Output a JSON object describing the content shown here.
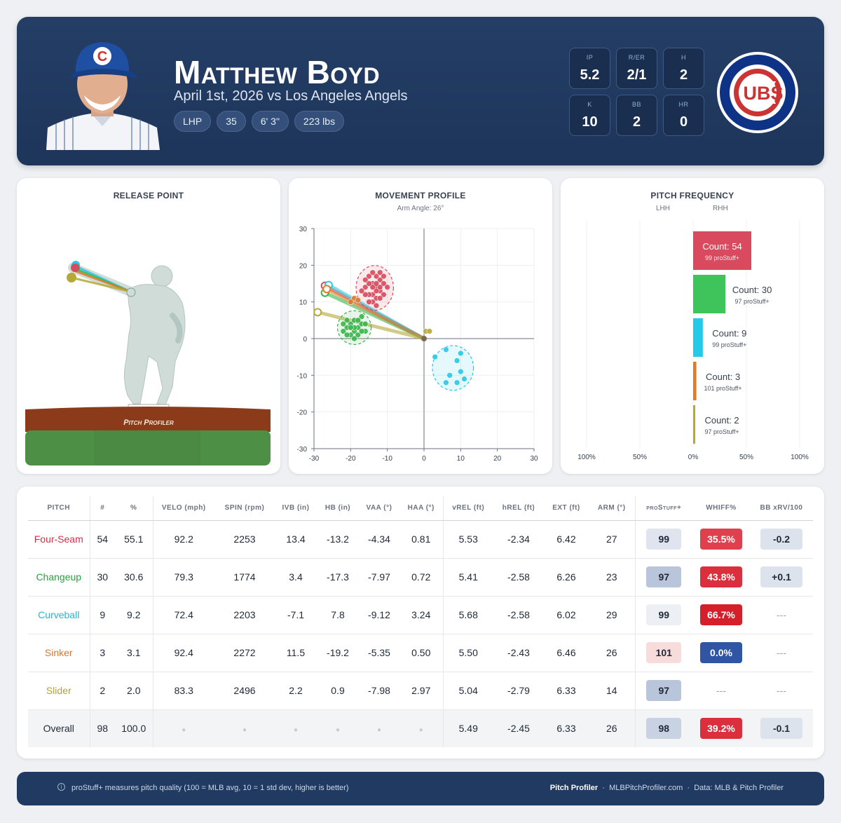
{
  "header": {
    "name": "Matthew Boyd",
    "subtitle": "April 1st, 2026 vs Los Angeles Angels",
    "chips": [
      "LHP",
      "35",
      "6' 3\"",
      "223 lbs"
    ],
    "stats": [
      {
        "label": "IP",
        "value": "5.2"
      },
      {
        "label": "R/ER",
        "value": "2/1"
      },
      {
        "label": "H",
        "value": "2"
      },
      {
        "label": "K",
        "value": "10"
      },
      {
        "label": "BB",
        "value": "2"
      },
      {
        "label": "HR",
        "value": "0"
      }
    ],
    "logo_text": "UBS",
    "logo_tm": "TM",
    "cap_letter": "C"
  },
  "release_point": {
    "title": "RELEASE POINT",
    "mound_text": "Pitch Profiler"
  },
  "movement": {
    "title": "MOVEMENT PROFILE",
    "subtitle": "Arm Angle: 26°"
  },
  "frequency": {
    "title": "PITCH FREQUENCY",
    "lhh_label": "LHH",
    "rhh_label": "RHH",
    "axis_labels": [
      "100%",
      "50%",
      "0%",
      "50%",
      "100%"
    ]
  },
  "chart_data": [
    {
      "type": "scatter",
      "title": "MOVEMENT PROFILE",
      "subtitle": "Arm Angle: 26°",
      "xlim": [
        -30,
        30
      ],
      "ylim": [
        -30,
        30
      ],
      "xticks": [
        -30,
        -20,
        -10,
        0,
        10,
        20,
        30
      ],
      "yticks": [
        -30,
        -20,
        -10,
        0,
        10,
        20,
        30
      ],
      "grid": true,
      "series": [
        {
          "name": "Four-Seam",
          "color": "#d94a5e",
          "arm": [
            -27,
            14.4
          ],
          "points": [
            [
              -15,
              17
            ],
            [
              -14,
              15
            ],
            [
              -13,
              14
            ],
            [
              -16,
              14
            ],
            [
              -12,
              16
            ],
            [
              -14,
              12
            ],
            [
              -13,
              11
            ],
            [
              -15,
              12
            ],
            [
              -12,
              13
            ],
            [
              -11,
              15
            ],
            [
              -13,
              17
            ],
            [
              -14,
              18
            ],
            [
              -12,
              18
            ],
            [
              -16,
              12
            ],
            [
              -17,
              13
            ],
            [
              -11,
              12
            ],
            [
              -13,
              13
            ],
            [
              -14,
              14
            ],
            [
              -15,
              15
            ],
            [
              -12,
              11
            ],
            [
              -14,
              10
            ],
            [
              -13,
              9
            ],
            [
              -10,
              14
            ],
            [
              -16,
              16
            ],
            [
              -12,
              14
            ],
            [
              -15,
              10
            ],
            [
              -13,
              15
            ],
            [
              -11,
              17
            ]
          ]
        },
        {
          "name": "Changeup",
          "color": "#3ab54a",
          "arm": [
            -27,
            12.5
          ],
          "points": [
            [
              -20,
              4
            ],
            [
              -21,
              3
            ],
            [
              -19,
              5
            ],
            [
              -18,
              3
            ],
            [
              -17,
              4
            ],
            [
              -19,
              2
            ],
            [
              -20,
              1
            ],
            [
              -18,
              1
            ],
            [
              -16,
              2
            ],
            [
              -21,
              5
            ],
            [
              -22,
              4
            ],
            [
              -17,
              6
            ],
            [
              -19,
              3
            ],
            [
              -18,
              5
            ],
            [
              -20,
              3
            ],
            [
              -16,
              4
            ],
            [
              -22,
              2
            ],
            [
              -19,
              0
            ],
            [
              -17,
              2
            ],
            [
              -21,
              1
            ]
          ]
        },
        {
          "name": "Curveball",
          "color": "#28c9e8",
          "arm": [
            -26,
            14.6
          ],
          "points": [
            [
              3,
              -5
            ],
            [
              6,
              -3
            ],
            [
              10,
              -4
            ],
            [
              9,
              -6
            ],
            [
              10,
              -9
            ],
            [
              7,
              -10
            ],
            [
              9,
              -12
            ],
            [
              11,
              -11
            ],
            [
              6,
              -12
            ]
          ]
        },
        {
          "name": "Sinker",
          "color": "#e07b2a",
          "arm": [
            -26.5,
            13.5
          ],
          "points": [
            [
              -19,
              11
            ],
            [
              -20,
              10
            ],
            [
              -18,
              10.5
            ]
          ]
        },
        {
          "name": "Slider",
          "color": "#b5aa38",
          "arm": [
            -29,
            7.2
          ],
          "points": [
            [
              0.5,
              2
            ],
            [
              1.5,
              2
            ]
          ]
        }
      ]
    },
    {
      "type": "bar",
      "title": "PITCH FREQUENCY",
      "categories": [
        "Four-Seam",
        "Changeup",
        "Curveball",
        "Sinker",
        "Slider"
      ],
      "series": [
        {
          "name": "LHH",
          "values": [
            0,
            0,
            0,
            0,
            0
          ]
        },
        {
          "name": "RHH",
          "values": [
            54,
            30,
            9,
            3,
            2
          ]
        }
      ],
      "counts": [
        54,
        30,
        9,
        3,
        2
      ],
      "prostuff": [
        99,
        97,
        99,
        101,
        97
      ],
      "count_labels": [
        "Count: 54",
        "Count: 30",
        "Count: 9",
        "Count: 3",
        "Count: 2"
      ],
      "stuff_labels": [
        "99 proStuff+",
        "97 proStuff+",
        "99 proStuff+",
        "101 proStuff+",
        "97 proStuff+"
      ],
      "colors": [
        "#d94a5e",
        "#3ec45a",
        "#28c9e8",
        "#e07b2a",
        "#b5aa38"
      ],
      "xlim": [
        -100,
        100
      ]
    }
  ],
  "table": {
    "headers": [
      "PITCH",
      "#",
      "%",
      "VELO (mph)",
      "SPIN (rpm)",
      "IVB (in)",
      "HB (in)",
      "VAA (°)",
      "HAA (°)",
      "vREL (ft)",
      "hREL (ft)",
      "EXT (ft)",
      "ARM (°)",
      "proStuff+",
      "WHIFF%",
      "BB xRV/100"
    ],
    "rows": [
      {
        "pitch": "Four-Seam",
        "color": "#d62e47",
        "n": "54",
        "pct": "55.1",
        "velo": "92.2",
        "spin": "2253",
        "ivb": "13.4",
        "hb": "-13.2",
        "vaa": "-4.34",
        "haa": "0.81",
        "vrel": "5.53",
        "hrel": "-2.34",
        "ext": "6.42",
        "arm": "27",
        "stuff": "99",
        "stuff_bg": "#dfe4ee",
        "whiff": "35.5%",
        "whiff_bg": "#e0404e",
        "xrv": "-0.2",
        "xrv_bg": "#dde3ec"
      },
      {
        "pitch": "Changeup",
        "color": "#27a33a",
        "n": "30",
        "pct": "30.6",
        "velo": "79.3",
        "spin": "1774",
        "ivb": "3.4",
        "hb": "-17.3",
        "vaa": "-7.97",
        "haa": "0.72",
        "vrel": "5.41",
        "hrel": "-2.58",
        "ext": "6.26",
        "arm": "23",
        "stuff": "97",
        "stuff_bg": "#b9c5db",
        "whiff": "43.8%",
        "whiff_bg": "#db2f3d",
        "xrv": "+0.1",
        "xrv_bg": "#dde3ec"
      },
      {
        "pitch": "Curveball",
        "color": "#1fb8d8",
        "n": "9",
        "pct": "9.2",
        "velo": "72.4",
        "spin": "2203",
        "ivb": "-7.1",
        "hb": "7.8",
        "vaa": "-9.12",
        "haa": "3.24",
        "vrel": "5.68",
        "hrel": "-2.58",
        "ext": "6.02",
        "arm": "29",
        "stuff": "99",
        "stuff_bg": "#eceff4",
        "whiff": "66.7%",
        "whiff_bg": "#d5202c",
        "xrv": "---",
        "xrv_bg": ""
      },
      {
        "pitch": "Sinker",
        "color": "#d9782c",
        "n": "3",
        "pct": "3.1",
        "velo": "92.4",
        "spin": "2272",
        "ivb": "11.5",
        "hb": "-19.2",
        "vaa": "-5.35",
        "haa": "0.50",
        "vrel": "5.50",
        "hrel": "-2.43",
        "ext": "6.46",
        "arm": "26",
        "stuff": "101",
        "stuff_bg": "#f8dcdc",
        "whiff": "0.0%",
        "whiff_bg": "#2f55a4",
        "xrv": "---",
        "xrv_bg": ""
      },
      {
        "pitch": "Slider",
        "color": "#ada43a",
        "n": "2",
        "pct": "2.0",
        "velo": "83.3",
        "spin": "2496",
        "ivb": "2.2",
        "hb": "0.9",
        "vaa": "-7.98",
        "haa": "2.97",
        "vrel": "5.04",
        "hrel": "-2.79",
        "ext": "6.33",
        "arm": "14",
        "stuff": "97",
        "stuff_bg": "#b9c5db",
        "whiff": "---",
        "whiff_bg": "",
        "xrv": "---",
        "xrv_bg": ""
      }
    ],
    "overall": {
      "pitch": "Overall",
      "n": "98",
      "pct": "100.0",
      "dot": "●",
      "vrel": "5.49",
      "hrel": "-2.45",
      "ext": "6.33",
      "arm": "26",
      "stuff": "98",
      "stuff_bg": "#c9d2e3",
      "whiff": "39.2%",
      "whiff_bg": "#db2f3d",
      "xrv": "-0.1",
      "xrv_bg": "#dde3ec"
    }
  },
  "footer": {
    "info_icon": "i",
    "note": "proStuff+ measures pitch quality (100 = MLB avg, 10 = 1 std dev, higher is better)",
    "brand": "Pitch Profiler",
    "site": "MLBPitchProfiler.com",
    "sep": "·",
    "source": "Data: MLB & Pitch Profiler"
  },
  "colors": {
    "header_bg": "#213a61",
    "cubs_blue": "#0e3386",
    "cubs_red": "#cc3433"
  }
}
